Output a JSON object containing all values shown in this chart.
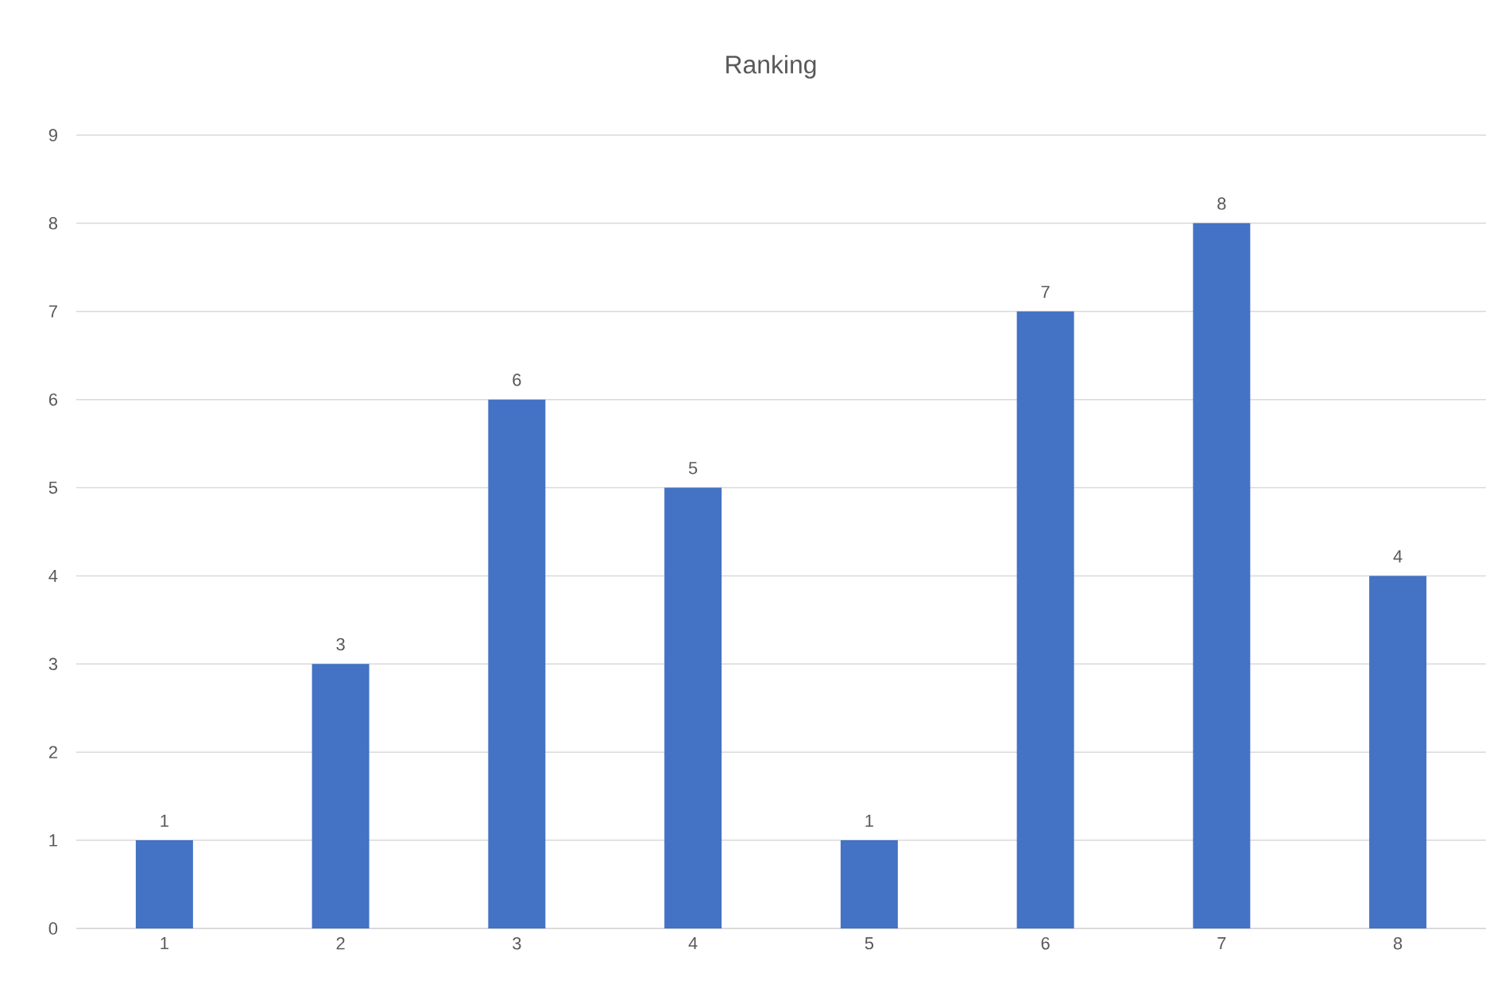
{
  "chart_data": {
    "type": "bar",
    "title": "Ranking",
    "categories": [
      "1",
      "2",
      "3",
      "4",
      "5",
      "6",
      "7",
      "8"
    ],
    "values": [
      1,
      3,
      6,
      5,
      1,
      7,
      8,
      4
    ],
    "color": "#4472c4",
    "ylim": [
      0,
      9
    ],
    "yticks": [
      0,
      1,
      2,
      3,
      4,
      5,
      6,
      7,
      8,
      9
    ],
    "grid": "y",
    "data_labels": true
  }
}
